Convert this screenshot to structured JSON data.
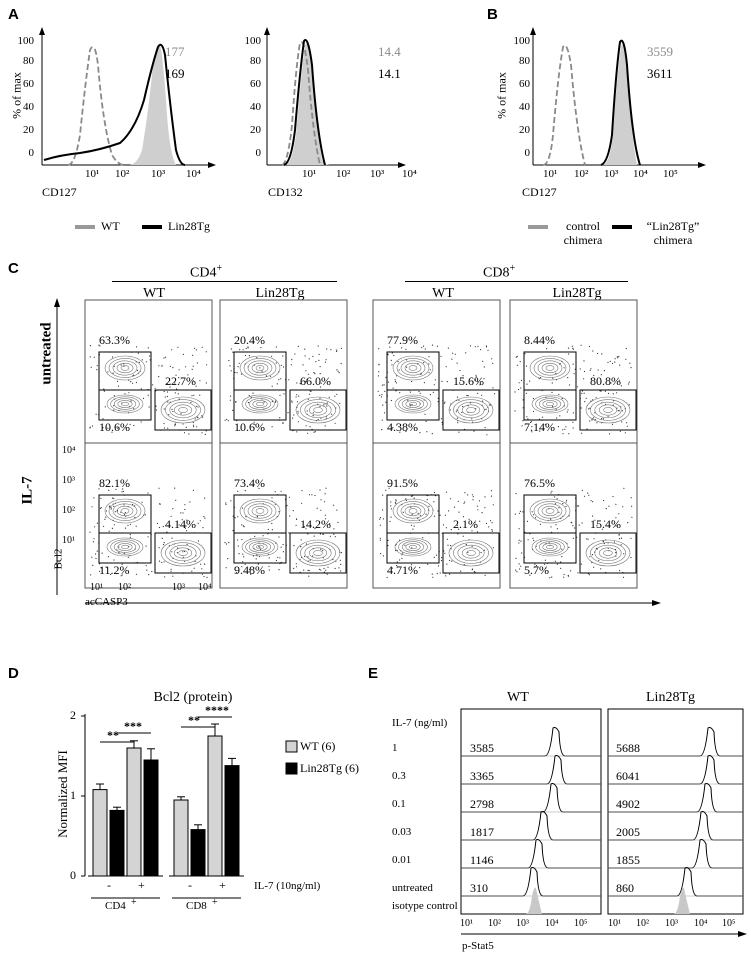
{
  "panel_labels": {
    "A": "A",
    "B": "B",
    "C": "C",
    "D": "D",
    "E": "E"
  },
  "panel_a": {
    "hist1": {
      "ylabel": "% of max",
      "xlabel": "CD127",
      "yticks": [
        "100",
        "80",
        "60",
        "40",
        "20",
        "0"
      ],
      "xticks": [
        "10¹",
        "10²",
        "10³",
        "10⁴"
      ],
      "wt_mfi": "177",
      "lin_mfi": "169"
    },
    "hist2": {
      "xlabel": "CD132",
      "yticks": [
        "100",
        "80",
        "60",
        "40",
        "20",
        "0"
      ],
      "xticks": [
        "10¹",
        "10²",
        "10³",
        "10⁴"
      ],
      "wt_mfi": "14.4",
      "lin_mfi": "14.1"
    },
    "legend": {
      "wt": "WT",
      "lin": "Lin28Tg"
    }
  },
  "panel_b": {
    "ylabel": "% of max",
    "xlabel": "CD127",
    "yticks": [
      "100",
      "80",
      "60",
      "40",
      "20",
      "0"
    ],
    "xticks": [
      "10¹",
      "10²",
      "10³",
      "10⁴",
      "10⁵"
    ],
    "ctrl_mfi": "3559",
    "lin_mfi": "3611",
    "legend": {
      "ctrl_1": "control",
      "ctrl_2": "chimera",
      "lin_1": "“Lin28Tg”",
      "lin_2": "chimera"
    }
  },
  "panel_c": {
    "group1": "CD4",
    "group1_sup": "+",
    "group2": "CD8",
    "group2_sup": "+",
    "columns": [
      "WT",
      "Lin28Tg",
      "WT",
      "Lin28Tg"
    ],
    "rows": [
      "untreated",
      "IL-7"
    ],
    "ylabel": "Bcl2",
    "xlabel": "acCASP3",
    "yticks": [
      "10⁴",
      "10³",
      "10²",
      "10¹"
    ],
    "xticks": [
      "10¹",
      "10²",
      "10³",
      "10⁴"
    ],
    "plots": [
      {
        "top": "63.3%",
        "right": "22.7%",
        "bottom": "10.6%"
      },
      {
        "top": "20.4%",
        "right": "66.0%",
        "bottom": "10.6%"
      },
      {
        "top": "77.9%",
        "right": "15.6%",
        "bottom": "4.38%"
      },
      {
        "top": "8.44%",
        "right": "80.8%",
        "bottom": "7.14%"
      },
      {
        "top": "82.1%",
        "right": "4.14%",
        "bottom": "11.2%"
      },
      {
        "top": "73.4%",
        "right": "14.2%",
        "bottom": "9.48%"
      },
      {
        "top": "91.5%",
        "right": "2.1%",
        "bottom": "4.71%"
      },
      {
        "top": "76.5%",
        "right": "15.4%",
        "bottom": "5.7%"
      }
    ]
  },
  "chart_data": {
    "type": "bar",
    "title": "Bcl2 (protein)",
    "ylabel": "Normalized MFI",
    "xlabel": "IL-7 (10ng/ml)",
    "ylim": [
      0,
      2
    ],
    "yticks": [
      "0",
      "1",
      "2"
    ],
    "groups": [
      "CD4",
      "CD8"
    ],
    "group_sup": "+",
    "treatment_labels": [
      "-",
      "+",
      "-",
      "+"
    ],
    "series": [
      {
        "name": "WT (6)",
        "color": "#d4d4d4",
        "values": [
          1.08,
          1.6,
          0.95,
          1.75
        ],
        "errors": [
          0.07,
          0.09,
          0.04,
          0.15
        ]
      },
      {
        "name": "Lin28Tg (6)",
        "color": "#000000",
        "values": [
          0.82,
          1.45,
          0.58,
          1.38
        ],
        "errors": [
          0.04,
          0.14,
          0.06,
          0.09
        ]
      }
    ],
    "significance": [
      {
        "label": "**",
        "group": 0,
        "from": "wt_minus",
        "to": "wt_plus"
      },
      {
        "label": "***",
        "group": 0,
        "from": "lin_minus",
        "to": "lin_plus"
      },
      {
        "label": "**",
        "group": 1,
        "from": "wt_minus",
        "to": "wt_plus"
      },
      {
        "label": "****",
        "group": 1,
        "from": "lin_minus",
        "to": "lin_plus"
      }
    ]
  },
  "panel_e": {
    "title_wt": "WT",
    "title_lin": "Lin28Tg",
    "header": "IL-7 (ng/ml)",
    "rows": [
      "1",
      "0.3",
      "0.1",
      "0.03",
      "0.01",
      "untreated",
      "isotype control"
    ],
    "wt_values": [
      "3585",
      "3365",
      "2798",
      "1817",
      "1146",
      "310"
    ],
    "lin_values": [
      "5688",
      "6041",
      "4902",
      "2005",
      "1855",
      "860"
    ],
    "xlabel": "p-Stat5",
    "xticks": [
      "10¹",
      "10²",
      "10³",
      "10⁴",
      "10⁵"
    ]
  }
}
